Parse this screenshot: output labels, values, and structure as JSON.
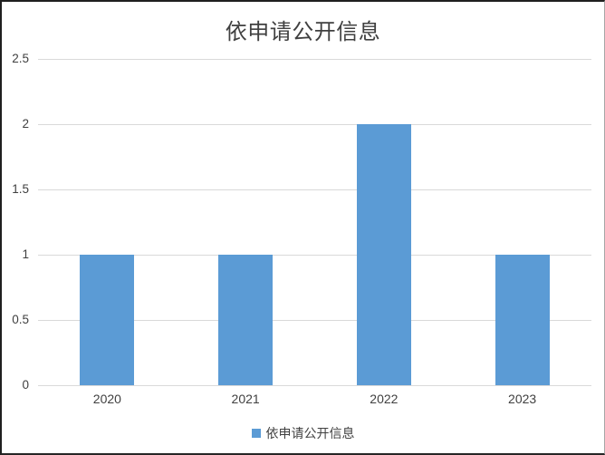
{
  "window": {
    "background": "#ffffff",
    "border_color_dark": "#1f1f1f",
    "border_color_light": "#a6a6a6"
  },
  "chart_data": {
    "type": "bar",
    "title": "依申请公开信息",
    "categories": [
      "2020",
      "2021",
      "2022",
      "2023"
    ],
    "series": [
      {
        "name": "依申请公开信息",
        "values": [
          1,
          1,
          2,
          1
        ],
        "color": "#5b9bd5"
      }
    ],
    "ylim": [
      0,
      2.5
    ],
    "ytick_step": 0.5,
    "ytick_labels": [
      "0",
      "0.5",
      "1",
      "1.5",
      "2",
      "2.5"
    ],
    "xlabel": "",
    "ylabel": "",
    "grid": true,
    "legend_position": "bottom",
    "colors": {
      "bar": "#5b9bd5",
      "gridline": "#d9d9d9",
      "title_text": "#404040",
      "axis_text": "#404040"
    }
  },
  "legend": {
    "label": "依申请公开信息",
    "swatch_color": "#5b9bd5"
  }
}
